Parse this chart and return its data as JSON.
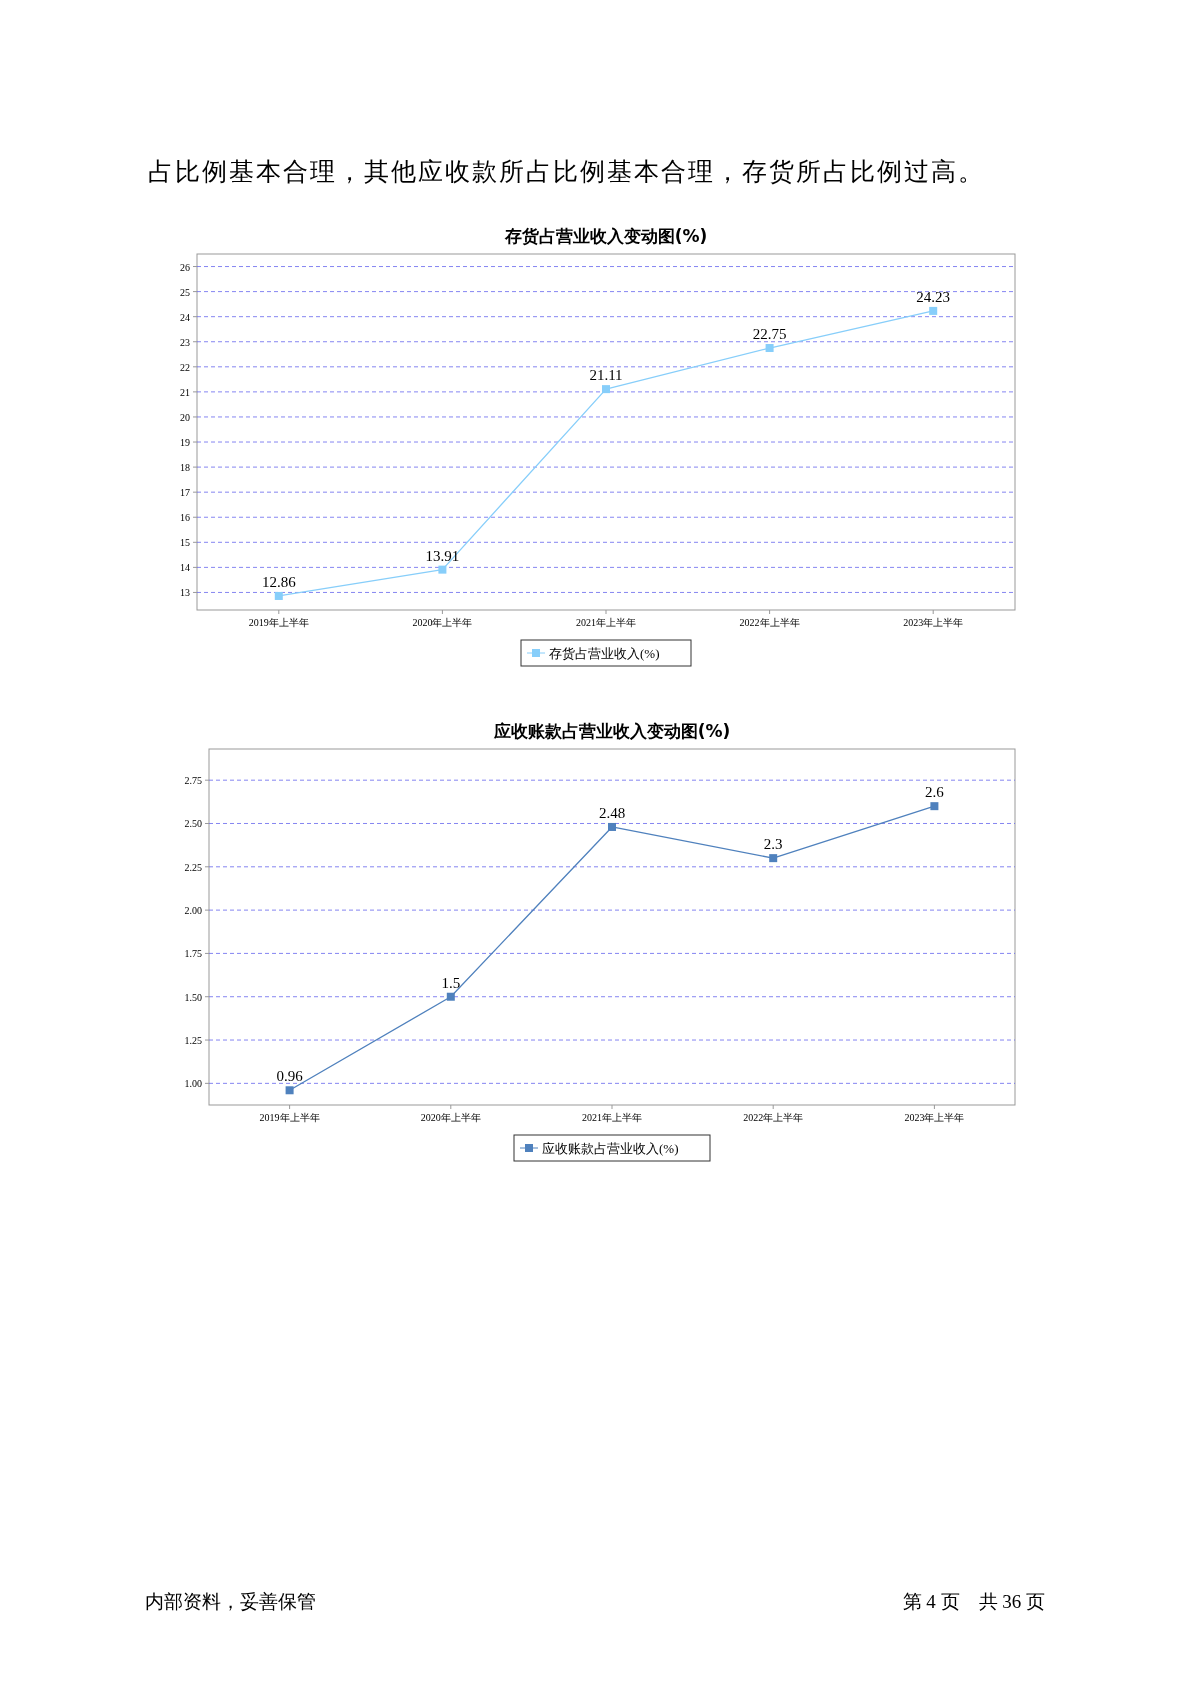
{
  "chart_data": [
    {
      "type": "line",
      "title": "存货占营业收入变动图(%)",
      "categories": [
        "2019年上半年",
        "2020年上半年",
        "2021年上半年",
        "2022年上半年",
        "2023年上半年"
      ],
      "series": [
        {
          "name": "存货占营业收入(%)",
          "color": "#87cefa",
          "values": [
            12.86,
            13.91,
            21.11,
            22.75,
            24.23
          ]
        }
      ],
      "ylim": [
        12.3,
        26.5
      ],
      "yticks": [
        13,
        14,
        15,
        16,
        17,
        18,
        19,
        20,
        21,
        22,
        23,
        24,
        25,
        26
      ],
      "grid": "y",
      "legend": "bottom",
      "marker": "square",
      "data_labels": true,
      "annotations": [
        "占比例基本合理，其他应收款所占比例基本合理，存货所占比例过高。"
      ]
    },
    {
      "type": "line",
      "title": "应收账款占营业收入变动图(%)",
      "categories": [
        "2019年上半年",
        "2020年上半年",
        "2021年上半年",
        "2022年上半年",
        "2023年上半年"
      ],
      "series": [
        {
          "name": "应收账款占营业收入(%)",
          "color": "#4f81bd",
          "values": [
            0.96,
            1.5,
            2.48,
            2.3,
            2.6
          ]
        }
      ],
      "ylim": [
        0.875,
        2.93
      ],
      "yticks": [
        {
          "value": 1,
          "label": "1.00"
        },
        {
          "value": 1.25,
          "label": "1.25"
        },
        {
          "value": 1.5,
          "label": "1.50"
        },
        {
          "value": 1.75,
          "label": "1.75"
        },
        {
          "value": 2,
          "label": "2.00"
        },
        {
          "value": 2.25,
          "label": "2.25"
        },
        {
          "value": 2.5,
          "label": "2.50"
        },
        {
          "value": 2.75,
          "label": "2.75"
        }
      ],
      "grid": "y",
      "legend": "bottom",
      "marker": "square",
      "data_labels": true,
      "annotations": [
        "内部资料，妥善保管",
        "第 4 页　共 36 页"
      ]
    }
  ]
}
